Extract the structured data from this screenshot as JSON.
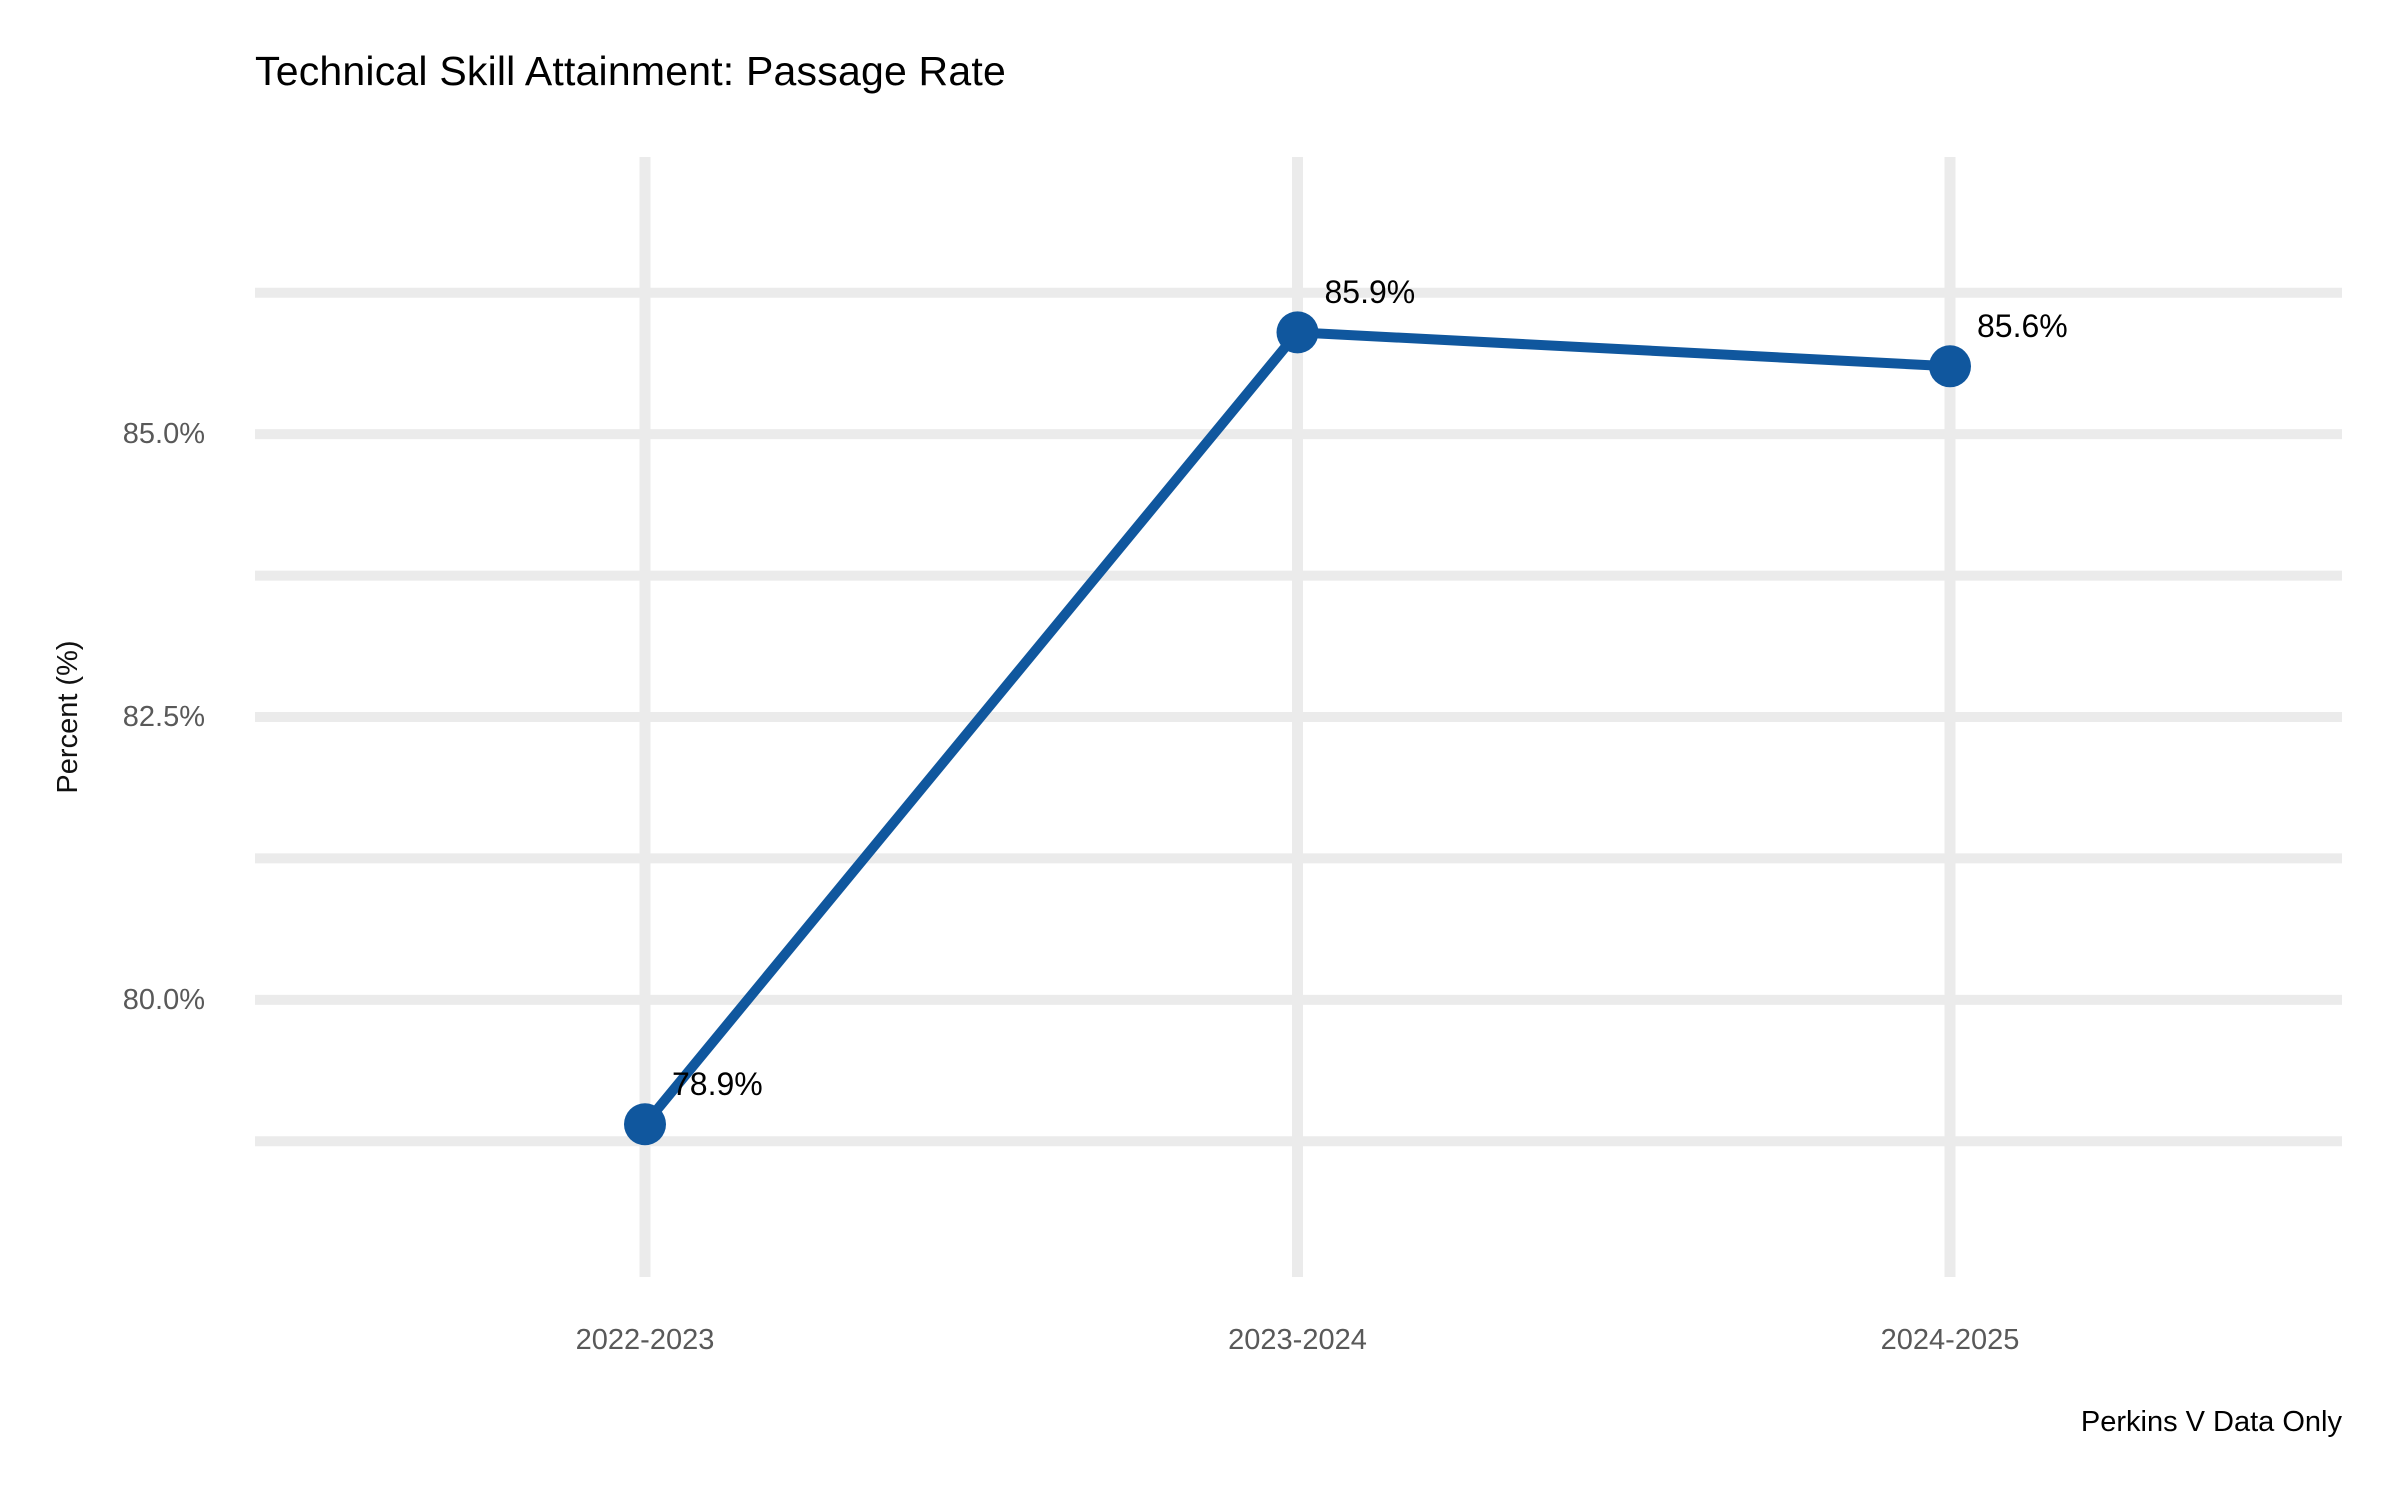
{
  "header": {
    "title": "Technical Skill Attainment: Passage Rate"
  },
  "chart_data": {
    "type": "line",
    "title": "Technical Skill Attainment: Passage Rate",
    "categories": [
      "2022-2023",
      "2023-2024",
      "2024-2025"
    ],
    "series": [
      {
        "name": "Passage Rate",
        "values": [
          78.9,
          85.9,
          85.6
        ]
      }
    ],
    "point_labels": [
      "78.9%",
      "85.9%",
      "85.6%"
    ],
    "xlabel": "",
    "ylabel": "Percent (%)",
    "yticks": [
      {
        "value": 85.0,
        "label": "85.0%"
      },
      {
        "value": 82.5,
        "label": "82.5%"
      },
      {
        "value": 80.0,
        "label": "80.0%"
      }
    ],
    "minor_ticks": [
      86.25,
      83.75,
      81.25,
      78.75
    ],
    "ylim": [
      77.55,
      87.45
    ],
    "grid": "on",
    "legend": "none",
    "caption": "Perkins V Data Only",
    "colors": {
      "line": "#10579E",
      "point": "#10579E",
      "grid": "#EBEBEB",
      "tick_text": "#595959",
      "axis_title_text": "#111111",
      "title_text": "#000000",
      "background": "#FFFFFF"
    }
  }
}
